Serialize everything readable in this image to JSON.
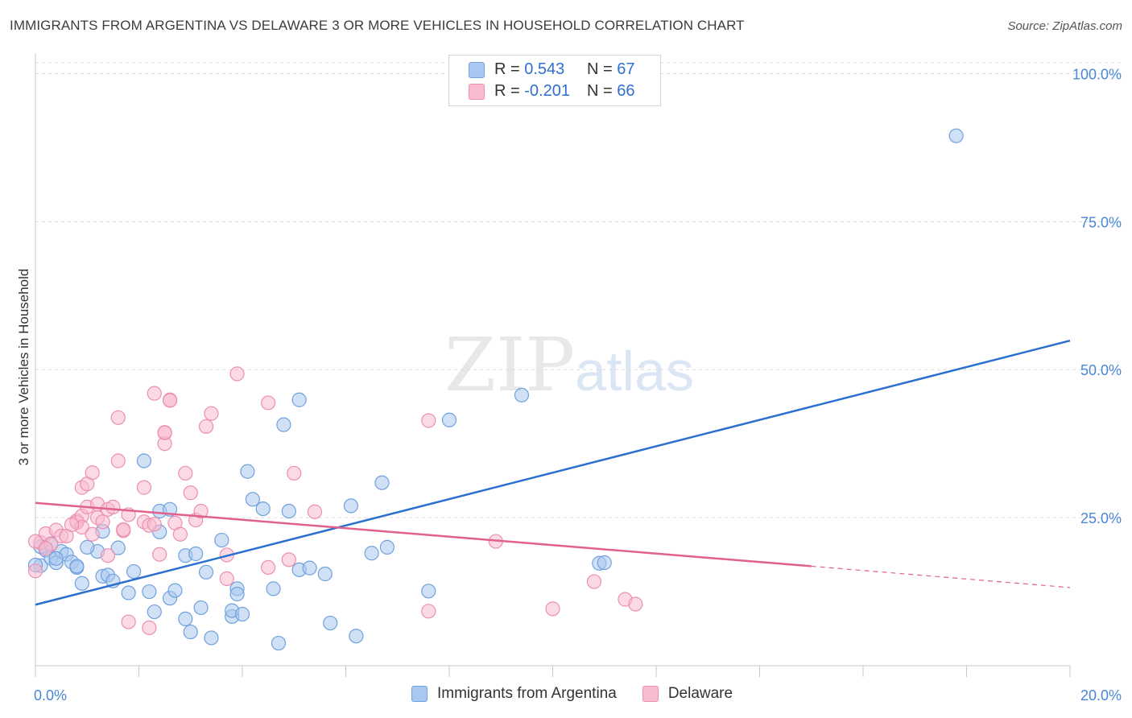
{
  "title": "IMMIGRANTS FROM ARGENTINA VS DELAWARE 3 OR MORE VEHICLES IN HOUSEHOLD CORRELATION CHART",
  "source": "Source: ZipAtlas.com",
  "watermark": {
    "zip": "ZIP",
    "atlas": "atlas"
  },
  "legend": {
    "rows": [
      {
        "r_label": "R = ",
        "r_value": "0.543",
        "n_label": "N = ",
        "n_value": "67",
        "color": "#a9c8ef",
        "border": "#6fa1de"
      },
      {
        "r_label": "R = ",
        "r_value": "-0.201",
        "n_label": "N = ",
        "n_value": "66",
        "color": "#f7bcd0",
        "border": "#ec8fb0"
      }
    ]
  },
  "bottom_legend": [
    "Immigrants from Argentina",
    "Delaware"
  ],
  "chart_data": {
    "type": "scatter",
    "title": "IMMIGRANTS FROM ARGENTINA VS DELAWARE 3 OR MORE VEHICLES IN HOUSEHOLD CORRELATION CHART",
    "xlabel": "",
    "ylabel": "3 or more Vehicles in Household",
    "xlim": [
      0,
      20
    ],
    "ylim": [
      0,
      100
    ],
    "x_tick_labels": [
      "0.0%",
      "20.0%"
    ],
    "y_tick_labels": [
      "25.0%",
      "50.0%",
      "75.0%",
      "100.0%"
    ],
    "y_ticks": [
      25,
      50,
      75,
      100
    ],
    "grid": true,
    "legend_position": "top-center",
    "series": [
      {
        "name": "Immigrants from Argentina",
        "color": "#6fa1de",
        "fill": "#a9c8ef",
        "line_color": "#2b6fcf",
        "trend": {
          "x0": 0,
          "y0": 10.3,
          "x1": 20,
          "y1": 54.9
        },
        "points": [
          [
            0.1,
            16.9
          ],
          [
            0.2,
            19.5
          ],
          [
            0.3,
            18.2
          ],
          [
            0.4,
            17.4
          ],
          [
            0.5,
            19.3
          ],
          [
            0.6,
            18.8
          ],
          [
            0.7,
            17.5
          ],
          [
            0.8,
            16.6
          ],
          [
            0.8,
            16.8
          ],
          [
            0.9,
            13.9
          ],
          [
            1.2,
            19.3
          ],
          [
            1.3,
            15.1
          ],
          [
            1.3,
            22.7
          ],
          [
            1.4,
            15.3
          ],
          [
            1.5,
            14.3
          ],
          [
            1.6,
            19.9
          ],
          [
            1.8,
            12.3
          ],
          [
            1.9,
            15.9
          ],
          [
            2.1,
            34.6
          ],
          [
            2.2,
            12.5
          ],
          [
            2.3,
            9.1
          ],
          [
            2.4,
            22.6
          ],
          [
            2.4,
            26.1
          ],
          [
            2.6,
            11.4
          ],
          [
            2.6,
            26.4
          ],
          [
            2.7,
            12.7
          ],
          [
            2.9,
            18.6
          ],
          [
            2.9,
            7.9
          ],
          [
            3.0,
            5.7
          ],
          [
            3.1,
            18.9
          ],
          [
            3.2,
            9.8
          ],
          [
            3.3,
            15.8
          ],
          [
            3.4,
            4.7
          ],
          [
            3.6,
            21.2
          ],
          [
            3.8,
            8.3
          ],
          [
            3.8,
            9.3
          ],
          [
            3.9,
            13.0
          ],
          [
            3.9,
            12.1
          ],
          [
            4.0,
            8.7
          ],
          [
            4.1,
            32.8
          ],
          [
            4.2,
            28.1
          ],
          [
            4.4,
            26.5
          ],
          [
            4.6,
            13.0
          ],
          [
            4.7,
            3.8
          ],
          [
            4.8,
            40.7
          ],
          [
            4.9,
            26.1
          ],
          [
            5.1,
            16.2
          ],
          [
            5.1,
            44.9
          ],
          [
            5.3,
            16.5
          ],
          [
            5.6,
            15.5
          ],
          [
            5.7,
            7.2
          ],
          [
            6.1,
            27.0
          ],
          [
            6.2,
            5.0
          ],
          [
            6.5,
            19.0
          ],
          [
            6.7,
            30.9
          ],
          [
            6.8,
            20.0
          ],
          [
            7.6,
            12.6
          ],
          [
            8.0,
            41.5
          ],
          [
            9.4,
            45.7
          ],
          [
            10.9,
            17.3
          ],
          [
            11.0,
            17.4
          ],
          [
            17.8,
            89.5
          ],
          [
            0.0,
            17.0
          ],
          [
            0.1,
            20.1
          ],
          [
            0.3,
            20.6
          ],
          [
            0.4,
            18.1
          ],
          [
            1.0,
            20.0
          ]
        ]
      },
      {
        "name": "Delaware",
        "color": "#ec8fb0",
        "fill": "#f7bcd0",
        "line_color": "#e0608e",
        "trend": {
          "x0": 0,
          "y0": 27.5,
          "x1": 15.0,
          "y1": 16.8
        },
        "trend_dashed_to": {
          "x": 20,
          "y": 13.2
        },
        "points": [
          [
            0.0,
            16.0
          ],
          [
            0.1,
            20.8
          ],
          [
            0.2,
            22.3
          ],
          [
            0.3,
            20.5
          ],
          [
            0.4,
            22.9
          ],
          [
            0.5,
            21.9
          ],
          [
            0.6,
            21.9
          ],
          [
            0.8,
            24.5
          ],
          [
            0.8,
            24.2
          ],
          [
            0.9,
            30.1
          ],
          [
            0.9,
            25.3
          ],
          [
            0.9,
            23.4
          ],
          [
            1.0,
            30.7
          ],
          [
            1.0,
            26.8
          ],
          [
            1.1,
            32.6
          ],
          [
            1.1,
            22.2
          ],
          [
            1.2,
            27.3
          ],
          [
            1.2,
            25.0
          ],
          [
            1.3,
            24.3
          ],
          [
            1.4,
            26.4
          ],
          [
            1.4,
            18.6
          ],
          [
            1.5,
            26.8
          ],
          [
            1.6,
            41.9
          ],
          [
            1.6,
            34.6
          ],
          [
            1.7,
            22.8
          ],
          [
            1.7,
            23.0
          ],
          [
            1.8,
            25.5
          ],
          [
            1.8,
            7.4
          ],
          [
            2.1,
            30.1
          ],
          [
            2.1,
            24.3
          ],
          [
            2.2,
            6.4
          ],
          [
            2.2,
            23.7
          ],
          [
            2.3,
            23.9
          ],
          [
            2.3,
            46.0
          ],
          [
            2.4,
            18.8
          ],
          [
            2.5,
            39.3
          ],
          [
            2.5,
            37.5
          ],
          [
            2.5,
            39.4
          ],
          [
            2.6,
            44.9
          ],
          [
            2.6,
            44.8
          ],
          [
            2.7,
            24.1
          ],
          [
            2.8,
            22.2
          ],
          [
            2.9,
            32.5
          ],
          [
            3.0,
            29.2
          ],
          [
            3.1,
            24.6
          ],
          [
            3.2,
            26.1
          ],
          [
            3.3,
            40.4
          ],
          [
            3.4,
            42.6
          ],
          [
            3.7,
            18.7
          ],
          [
            3.7,
            14.7
          ],
          [
            3.9,
            49.3
          ],
          [
            4.5,
            16.6
          ],
          [
            4.5,
            44.4
          ],
          [
            4.9,
            17.9
          ],
          [
            5.0,
            32.5
          ],
          [
            5.4,
            26.0
          ],
          [
            7.6,
            9.2
          ],
          [
            7.6,
            41.4
          ],
          [
            8.9,
            21.0
          ],
          [
            10.0,
            9.6
          ],
          [
            10.8,
            14.2
          ],
          [
            11.4,
            11.2
          ],
          [
            11.6,
            10.4
          ],
          [
            0.0,
            21.0
          ],
          [
            0.2,
            19.8
          ],
          [
            0.7,
            23.8
          ]
        ]
      }
    ]
  }
}
